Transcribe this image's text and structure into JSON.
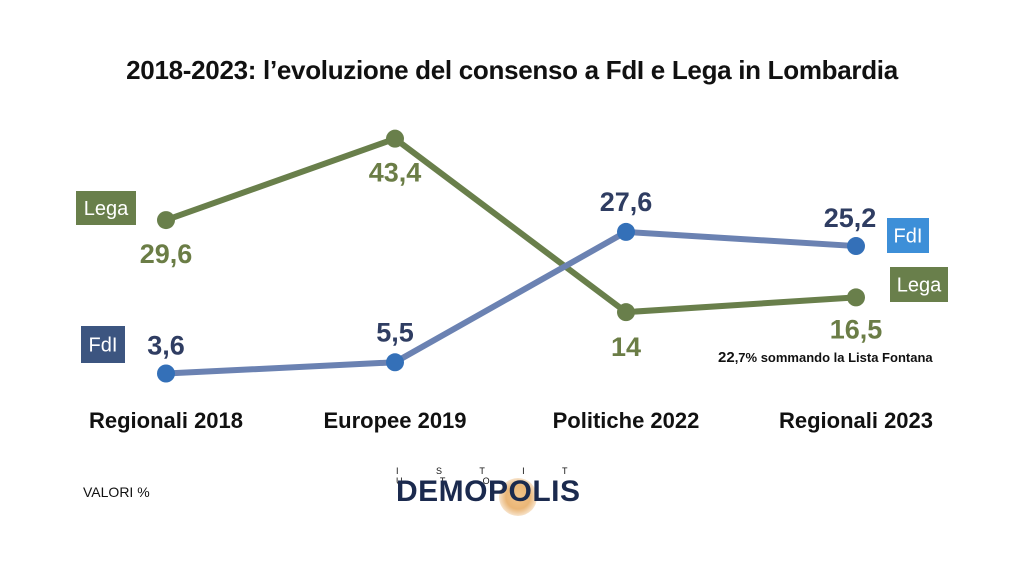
{
  "title": "2018-2023: l’evoluzione del consenso a FdI e Lega in Lombardia",
  "unit_note": "VALORI %",
  "footnote": {
    "value": "22",
    "rest": ",7% sommando la Lista Fontana"
  },
  "logo": {
    "top": "I S T I T U T O",
    "name": "DEMOPOLIS"
  },
  "colors": {
    "lega": "#697f4b",
    "fdi": "#6b82b2",
    "fdi_point": "#3470b8",
    "lega_text": "#6b7d46",
    "fdi_text": "#2f3d62"
  },
  "chart_data": {
    "type": "line",
    "title": "2018-2023: l’evoluzione del consenso a FdI e Lega in Lombardia",
    "categories": [
      "Regionali 2018",
      "Europee 2019",
      "Politiche 2022",
      "Regionali 2023"
    ],
    "series": [
      {
        "name": "Lega",
        "values": [
          29.6,
          43.4,
          14,
          16.5
        ],
        "labels": [
          "29,6",
          "43,4",
          "14",
          "16,5"
        ]
      },
      {
        "name": "FdI",
        "values": [
          3.6,
          5.5,
          27.6,
          25.2
        ],
        "labels": [
          "3,6",
          "5,5",
          "27,6",
          "25,2"
        ]
      }
    ],
    "legend_labels": {
      "lega": "Lega",
      "fdi": "FdI"
    },
    "ylim": [
      0,
      45
    ],
    "grid": false,
    "xlabel": "",
    "ylabel": ""
  }
}
